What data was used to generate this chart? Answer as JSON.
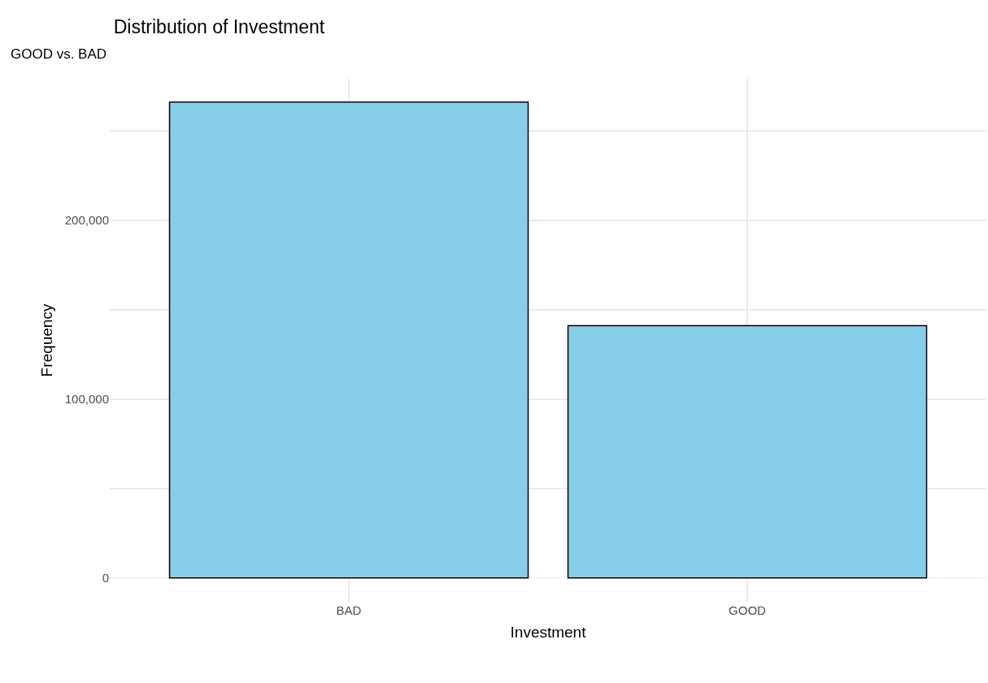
{
  "chart_data": {
    "type": "bar",
    "title": "Distribution of Investment",
    "subtitle": "GOOD vs. BAD",
    "xlabel": "Investment",
    "ylabel": "Frequency",
    "categories": [
      "BAD",
      "GOOD"
    ],
    "values": [
      266000,
      141000
    ],
    "color": "#87ceeb",
    "ylim": [
      -13300,
      279000
    ],
    "yticks": [
      {
        "value": 0,
        "label": "0"
      },
      {
        "value": 50000,
        "label": null
      },
      {
        "value": 100000,
        "label": "100,000"
      },
      {
        "value": 150000,
        "label": null
      },
      {
        "value": 200000,
        "label": "200,000"
      },
      {
        "value": 250000,
        "label": null
      }
    ],
    "grid": true,
    "legend": false
  }
}
